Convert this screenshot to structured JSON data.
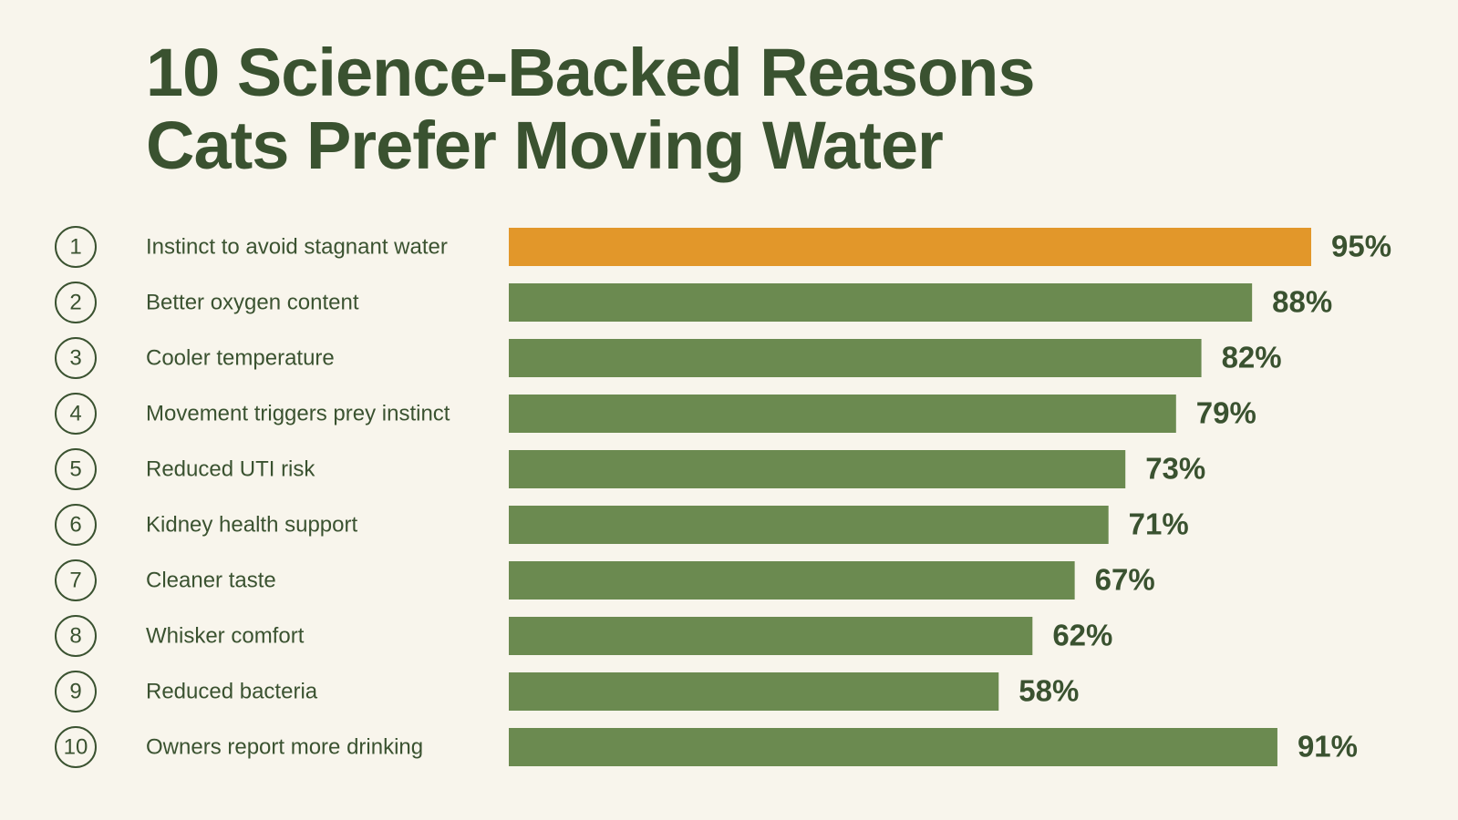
{
  "chart_data": {
    "type": "bar",
    "orientation": "horizontal",
    "title": "10 Science-Backed Reasons Cats Prefer Moving Water",
    "ranks": [
      1,
      2,
      3,
      4,
      5,
      6,
      7,
      8,
      9,
      10
    ],
    "categories": [
      "Instinct to avoid stagnant water",
      "Better oxygen content",
      "Cooler temperature",
      "Movement triggers prey instinct",
      "Reduced UTI risk",
      "Kidney health support",
      "Cleaner taste",
      "Whisker comfort",
      "Reduced bacteria",
      "Owners report more drinking"
    ],
    "values": [
      95,
      88,
      82,
      79,
      73,
      71,
      67,
      62,
      58,
      91
    ],
    "value_labels": [
      "95%",
      "88%",
      "82%",
      "79%",
      "73%",
      "71%",
      "67%",
      "62%",
      "58%",
      "91%"
    ],
    "colors": [
      "#e2972a",
      "#6b8a50",
      "#6b8a50",
      "#6b8a50",
      "#6b8a50",
      "#6b8a50",
      "#6b8a50",
      "#6b8a50",
      "#6b8a50",
      "#6b8a50"
    ]
  }
}
